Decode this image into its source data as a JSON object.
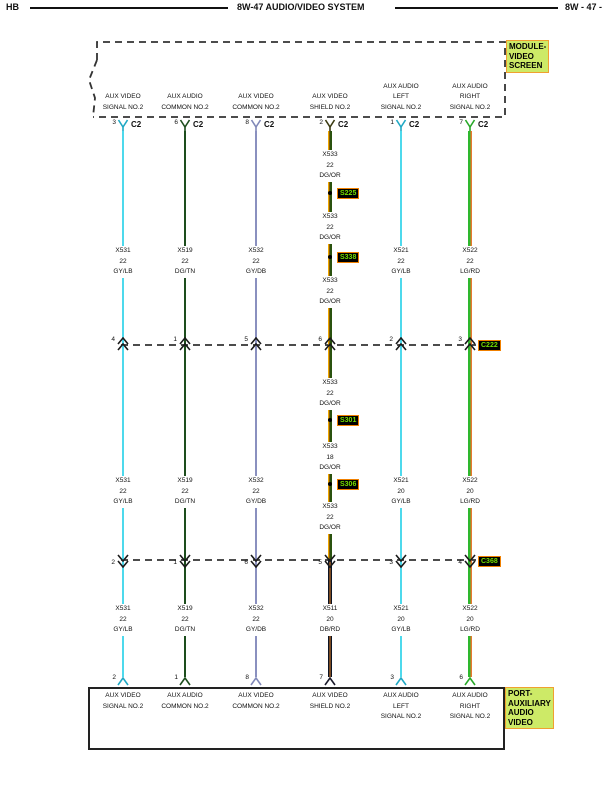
{
  "header": {
    "left": "HB",
    "title": "8W-47 AUDIO/VIDEO SYSTEM",
    "right": "8W - 47 -"
  },
  "module_top": {
    "label_lines": [
      "MODULE-",
      "VIDEO",
      "SCREEN"
    ]
  },
  "module_bottom": {
    "label_lines": [
      "PORT-",
      "AUXILIARY",
      "AUDIO",
      "VIDEO"
    ]
  },
  "connector_top": "C2",
  "connectors_inline": [
    {
      "name": "C222"
    },
    {
      "name": "C368"
    }
  ],
  "colors": {
    "highlight_bg": "#cdea67",
    "highlight_border": "#f0a030",
    "ref_bg": "#000000",
    "ref_text": "#72dd00",
    "ref_border": "#f08000",
    "wire_gy_lb": "#4ed9ec",
    "wire_dg_tn": "#1d4d1d",
    "wire_gy_db": "#8a90bf",
    "wire_dg_or": "#f0a800",
    "wire_lg_rd": "#2eb82e",
    "wire_db_rd": "#0c1424"
  },
  "columns": [
    {
      "top_pin": "3",
      "top_label": [
        "AUX VIDEO",
        "SIGNAL NO.2"
      ],
      "c222_pin": "4",
      "c368_pin": "2",
      "bottom_pin": "2",
      "bottom_label": [
        "AUX VIDEO",
        "SIGNAL NO.2"
      ],
      "top_items": [
        {
          "type": "label",
          "circuit": "X531",
          "gauge": "22",
          "color": "GY/LB"
        }
      ],
      "mid_items": [
        {
          "type": "label",
          "circuit": "X531",
          "gauge": "22",
          "color": "GY/LB"
        }
      ],
      "bottom_items": [
        {
          "type": "label",
          "circuit": "X531",
          "gauge": "22",
          "color": "GY/LB"
        }
      ]
    },
    {
      "top_pin": "6",
      "top_label": [
        "AUX AUDIO",
        "COMMON NO.2"
      ],
      "c222_pin": "1",
      "c368_pin": "1",
      "bottom_pin": "1",
      "bottom_label": [
        "AUX AUDIO",
        "COMMON NO.2"
      ],
      "top_items": [
        {
          "type": "label",
          "circuit": "X519",
          "gauge": "22",
          "color": "DG/TN"
        }
      ],
      "mid_items": [
        {
          "type": "label",
          "circuit": "X519",
          "gauge": "22",
          "color": "DG/TN"
        }
      ],
      "bottom_items": [
        {
          "type": "label",
          "circuit": "X519",
          "gauge": "22",
          "color": "DG/TN"
        }
      ]
    },
    {
      "top_pin": "8",
      "top_label": [
        "AUX VIDEO",
        "COMMON NO.2"
      ],
      "c222_pin": "5",
      "c368_pin": "6",
      "bottom_pin": "8",
      "bottom_label": [
        "AUX VIDEO",
        "COMMON NO.2"
      ],
      "top_items": [
        {
          "type": "label",
          "circuit": "X532",
          "gauge": "22",
          "color": "GY/DB"
        }
      ],
      "mid_items": [
        {
          "type": "label",
          "circuit": "X532",
          "gauge": "22",
          "color": "GY/DB"
        }
      ],
      "bottom_items": [
        {
          "type": "label",
          "circuit": "X532",
          "gauge": "22",
          "color": "GY/DB"
        }
      ]
    },
    {
      "top_pin": "2",
      "top_label": [
        "AUX VIDEO",
        "SHIELD NO.2"
      ],
      "c222_pin": "6",
      "c368_pin": "5",
      "bottom_pin": "7",
      "bottom_label": [
        "AUX VIDEO",
        "SHIELD NO.2"
      ],
      "top_items": [
        {
          "type": "label",
          "circuit": "X533",
          "gauge": "22",
          "color": "DG/OR"
        },
        {
          "type": "splice",
          "name": "S225"
        },
        {
          "type": "label",
          "circuit": "X533",
          "gauge": "22",
          "color": "DG/OR"
        },
        {
          "type": "splice",
          "name": "S338"
        },
        {
          "type": "label",
          "circuit": "X533",
          "gauge": "22",
          "color": "DG/OR"
        }
      ],
      "mid_items": [
        {
          "type": "label",
          "circuit": "X533",
          "gauge": "22",
          "color": "DG/OR"
        },
        {
          "type": "splice",
          "name": "S301"
        },
        {
          "type": "label",
          "circuit": "X533",
          "gauge": "18",
          "color": "DG/OR"
        },
        {
          "type": "splice",
          "name": "S306"
        },
        {
          "type": "label",
          "circuit": "X533",
          "gauge": "22",
          "color": "DG/OR"
        }
      ],
      "bottom_items": [
        {
          "type": "label",
          "circuit": "X511",
          "gauge": "20",
          "color": "DB/RD"
        }
      ]
    },
    {
      "top_pin": "1",
      "top_label": [
        "AUX AUDIO",
        "LEFT",
        "SIGNAL NO.2"
      ],
      "c222_pin": "2",
      "c368_pin": "3",
      "bottom_pin": "3",
      "bottom_label": [
        "AUX AUDIO",
        "LEFT",
        "SIGNAL NO.2"
      ],
      "top_items": [
        {
          "type": "label",
          "circuit": "X521",
          "gauge": "22",
          "color": "GY/LB"
        }
      ],
      "mid_items": [
        {
          "type": "label",
          "circuit": "X521",
          "gauge": "20",
          "color": "GY/LB"
        }
      ],
      "bottom_items": [
        {
          "type": "label",
          "circuit": "X521",
          "gauge": "20",
          "color": "GY/LB"
        }
      ]
    },
    {
      "top_pin": "7",
      "top_label": [
        "AUX AUDIO",
        "RIGHT",
        "SIGNAL NO.2"
      ],
      "c222_pin": "3",
      "c368_pin": "4",
      "bottom_pin": "6",
      "bottom_label": [
        "AUX AUDIO",
        "RIGHT",
        "SIGNAL NO.2"
      ],
      "top_items": [
        {
          "type": "label",
          "circuit": "X522",
          "gauge": "22",
          "color": "LG/RD"
        }
      ],
      "mid_items": [
        {
          "type": "label",
          "circuit": "X522",
          "gauge": "20",
          "color": "LG/RD"
        }
      ],
      "bottom_items": [
        {
          "type": "label",
          "circuit": "X522",
          "gauge": "20",
          "color": "LG/RD"
        }
      ]
    }
  ]
}
